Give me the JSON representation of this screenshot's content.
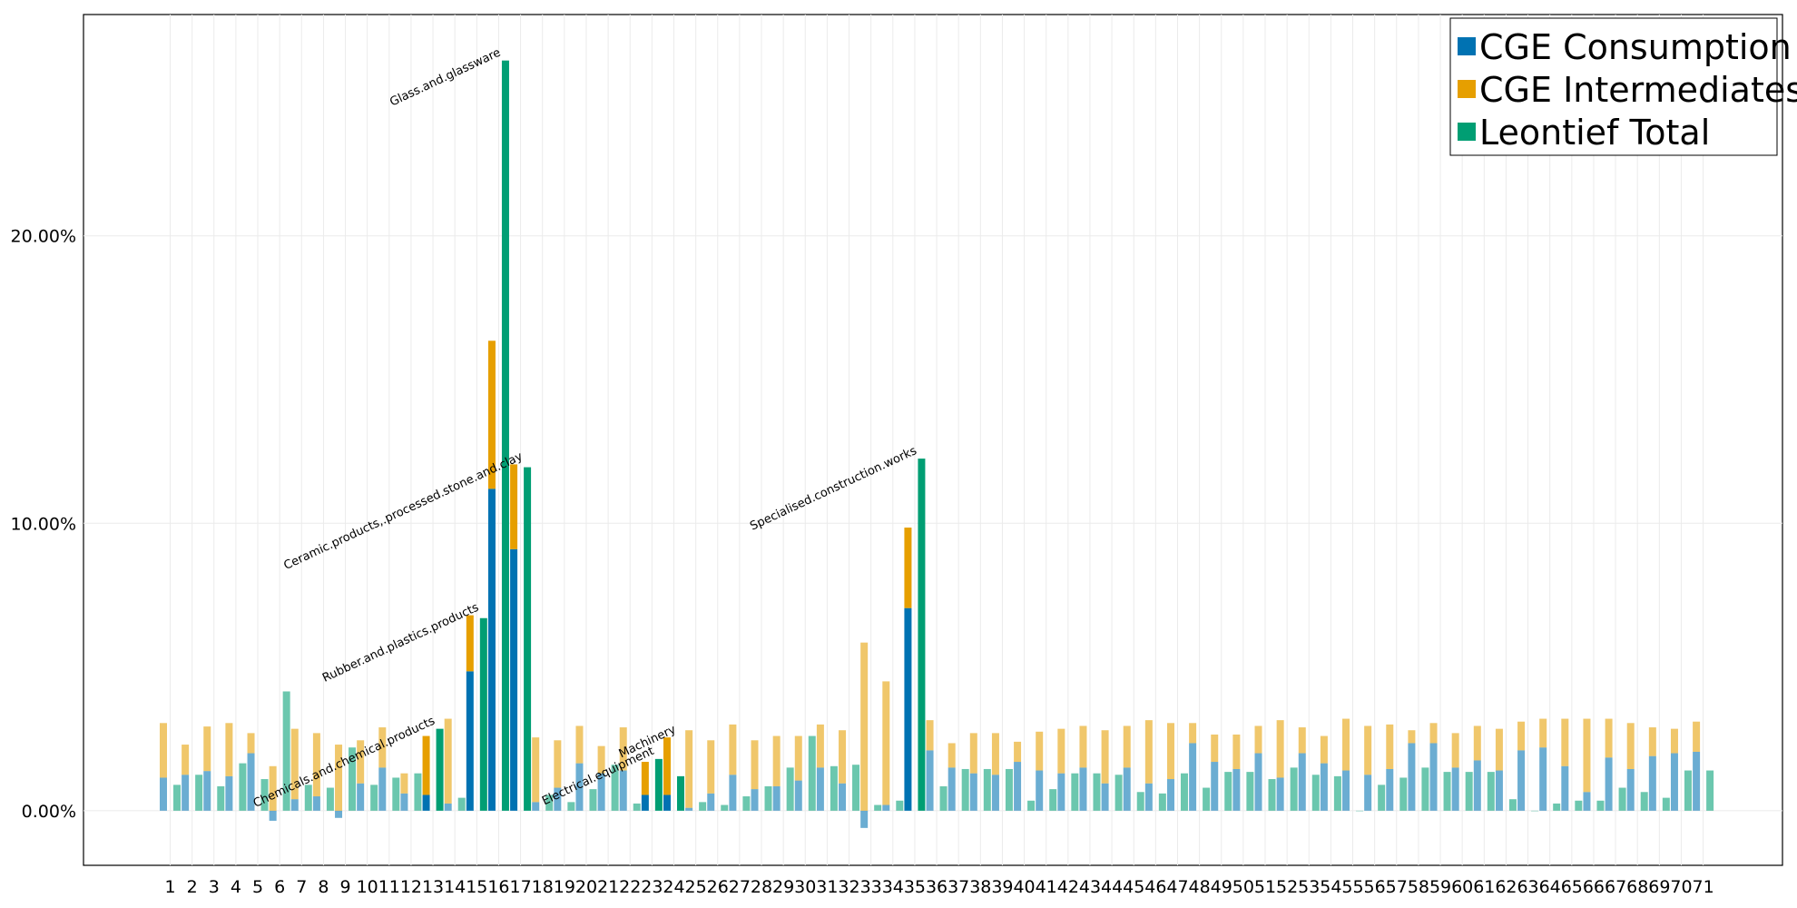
{
  "chart_data": {
    "type": "bar",
    "x_tick_labels": [
      "1",
      "2",
      "3",
      "4",
      "5",
      "6",
      "7",
      "8",
      "9",
      "10",
      "11",
      "12",
      "13",
      "14",
      "15",
      "16",
      "17",
      "18",
      "19",
      "20",
      "21",
      "22",
      "23",
      "24",
      "25",
      "26",
      "27",
      "28",
      "29",
      "30",
      "31",
      "32",
      "33",
      "34",
      "35",
      "36",
      "37",
      "38",
      "39",
      "40",
      "41",
      "42",
      "43",
      "44",
      "45",
      "46",
      "47",
      "48",
      "49",
      "50",
      "51",
      "52",
      "53",
      "54",
      "55",
      "56",
      "57",
      "58",
      "59",
      "60",
      "61",
      "62",
      "63",
      "64",
      "65",
      "66",
      "67",
      "68",
      "69",
      "70",
      "71"
    ],
    "y_tick_labels": [
      "0.00%",
      "10.00%",
      "20.00%"
    ],
    "ylim": [
      -1.9,
      27.7
    ],
    "grid": true,
    "legend_position": "top-right",
    "series": [
      {
        "name": "CGE Consumption",
        "color": "#0072B2",
        "stacked_with": "CGE Intermediates",
        "values": [
          1.15,
          1.25,
          1.38,
          1.2,
          2.0,
          -0.35,
          0.4,
          0.5,
          -0.25,
          0.95,
          1.5,
          0.6,
          0.55,
          0.25,
          4.85,
          11.2,
          9.1,
          0.3,
          0.8,
          1.65,
          1.3,
          1.4,
          0.55,
          0.55,
          0.1,
          0.6,
          1.25,
          0.75,
          0.85,
          1.05,
          1.5,
          0.95,
          -0.6,
          0.2,
          7.05,
          2.1,
          1.5,
          1.3,
          1.25,
          1.7,
          1.4,
          1.3,
          1.5,
          0.95,
          1.5,
          0.95,
          1.1,
          2.35,
          1.7,
          1.45,
          2.0,
          1.15,
          2.0,
          1.65,
          1.4,
          1.25,
          1.45,
          2.35,
          2.35,
          1.5,
          1.75,
          1.4,
          2.1,
          2.2,
          1.55,
          0.65,
          1.85,
          1.45,
          1.9,
          2.0,
          2.05
        ]
      },
      {
        "name": "CGE Intermediates",
        "color": "#E69F00",
        "values": [
          1.9,
          1.05,
          1.55,
          1.85,
          0.7,
          1.55,
          2.45,
          2.2,
          2.3,
          1.5,
          1.4,
          0.7,
          2.05,
          2.95,
          1.95,
          5.15,
          2.95,
          2.25,
          1.65,
          1.3,
          0.95,
          1.5,
          1.15,
          2.0,
          2.7,
          1.85,
          1.75,
          1.7,
          1.75,
          1.55,
          1.5,
          1.85,
          5.85,
          4.3,
          2.8,
          1.05,
          0.85,
          1.4,
          1.45,
          0.7,
          1.35,
          1.55,
          1.45,
          1.85,
          1.45,
          2.2,
          1.95,
          0.7,
          0.95,
          1.2,
          0.95,
          2.0,
          0.9,
          0.95,
          1.8,
          1.7,
          1.55,
          0.45,
          0.7,
          1.2,
          1.2,
          1.45,
          1.0,
          1.0,
          1.65,
          2.55,
          1.35,
          1.6,
          1.0,
          0.85,
          1.05
        ]
      },
      {
        "name": "Leontief Total",
        "color": "#009E73",
        "values": [
          0.9,
          1.25,
          0.85,
          1.65,
          1.1,
          4.15,
          0.9,
          0.8,
          2.2,
          0.9,
          1.15,
          1.3,
          2.85,
          0.45,
          6.7,
          26.1,
          11.95,
          0.55,
          0.3,
          0.75,
          1.6,
          0.25,
          1.8,
          1.2,
          0.3,
          0.2,
          0.5,
          0.85,
          1.5,
          2.6,
          1.55,
          1.6,
          0.2,
          0.35,
          12.25,
          0.85,
          1.45,
          1.45,
          1.45,
          0.35,
          0.75,
          1.3,
          1.3,
          1.25,
          0.65,
          0.6,
          1.3,
          0.8,
          1.35,
          1.35,
          1.1,
          1.5,
          1.25,
          1.2,
          0.0,
          0.9,
          1.15,
          1.5,
          1.35,
          1.35,
          1.35,
          0.4,
          0.0,
          0.25,
          0.35,
          0.35,
          0.8,
          0.65,
          0.45,
          1.4,
          1.4
        ]
      }
    ],
    "highlighted_sectors": [
      13,
      15,
      16,
      17,
      23,
      24,
      35
    ],
    "annotations": [
      {
        "text": "Chemicals.and.chemical.products",
        "sector": 13
      },
      {
        "text": "Rubber.and.plastics.products",
        "sector": 15
      },
      {
        "text": "Glass.and.glassware",
        "sector": 16
      },
      {
        "text": "Ceramic.products,.processed.stone.and.clay",
        "sector": 17
      },
      {
        "text": "Electrical.equipment",
        "sector": 23
      },
      {
        "text": "Machinery",
        "sector": 24
      },
      {
        "text": "Specialised.construction.works",
        "sector": 35
      }
    ]
  }
}
